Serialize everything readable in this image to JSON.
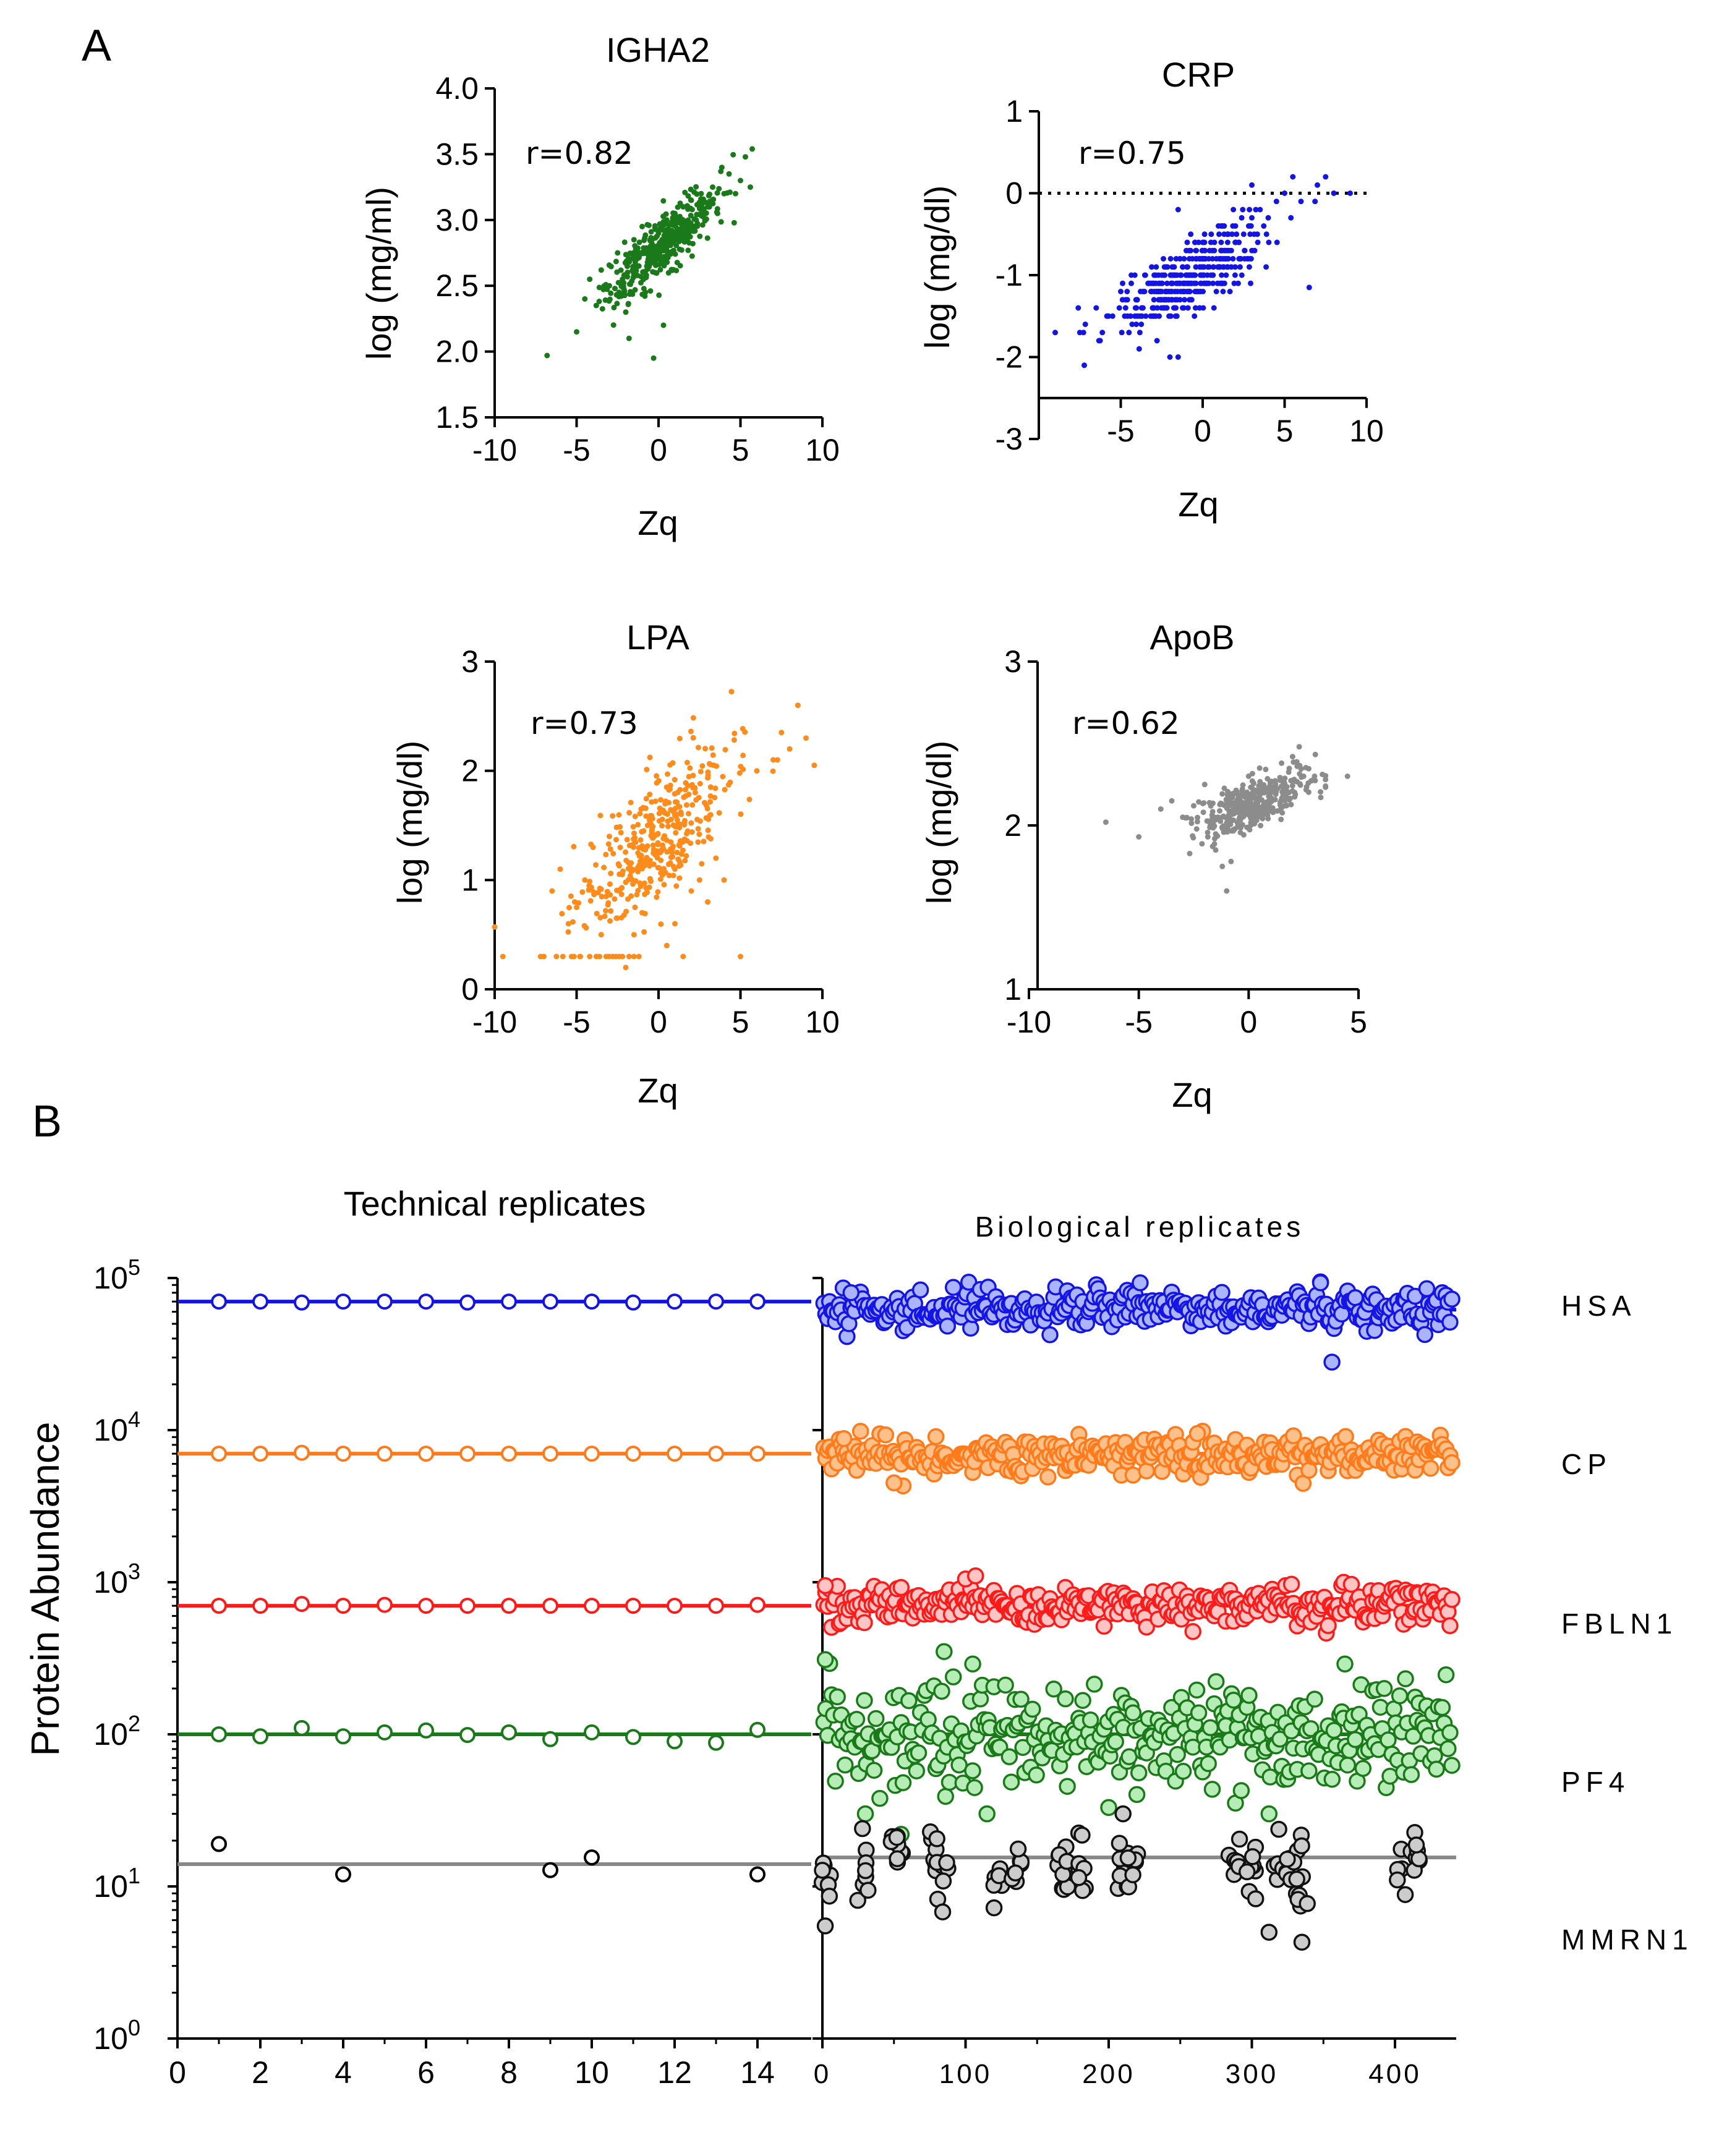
{
  "panels": {
    "a": "A",
    "b": "B"
  },
  "chart_data": [
    {
      "id": "igha2",
      "type": "scatter",
      "title": "IGHA2",
      "xlabel": "Zq",
      "ylabel": "log (mg/ml)",
      "annotation": "r=0.82",
      "xlim": [
        -10,
        10
      ],
      "ylim": [
        1.5,
        4.0
      ],
      "xticks": [
        -10,
        -5,
        0,
        5,
        10
      ],
      "yticks": [
        1.5,
        2.0,
        2.5,
        3.0,
        3.5,
        4.0
      ],
      "ytick_labels": [
        "1.5",
        "2.0",
        "2.5",
        "3.0",
        "3.5",
        "4.0"
      ],
      "color": "#1a7a1a",
      "points": [
        [
          -6.8,
          1.97
        ],
        [
          -5.0,
          2.15
        ],
        [
          -4.5,
          2.4
        ],
        [
          -4.2,
          2.55
        ],
        [
          -3.8,
          2.35
        ],
        [
          -3.5,
          2.62
        ],
        [
          -3.0,
          2.5
        ],
        [
          -2.5,
          2.75
        ],
        [
          -2.2,
          2.55
        ],
        [
          -2.0,
          2.3
        ],
        [
          -1.5,
          2.85
        ],
        [
          -1.2,
          2.65
        ],
        [
          -1.0,
          2.95
        ],
        [
          -0.8,
          2.45
        ],
        [
          -0.5,
          2.8
        ],
        [
          -0.2,
          2.6
        ],
        [
          0.0,
          2.9
        ],
        [
          0.3,
          2.2
        ],
        [
          0.5,
          3.0
        ],
        [
          0.8,
          2.75
        ],
        [
          1.0,
          3.05
        ],
        [
          1.3,
          2.85
        ],
        [
          1.5,
          3.1
        ],
        [
          1.8,
          2.95
        ],
        [
          2.0,
          3.15
        ],
        [
          2.3,
          3.0
        ],
        [
          2.6,
          3.2
        ],
        [
          3.0,
          3.1
        ],
        [
          3.3,
          3.25
        ],
        [
          3.6,
          3.05
        ],
        [
          4.0,
          3.2
        ],
        [
          4.3,
          3.35
        ],
        [
          4.7,
          3.2
        ],
        [
          5.0,
          3.3
        ],
        [
          5.3,
          3.48
        ],
        [
          5.6,
          3.25
        ],
        [
          -0.3,
          1.95
        ],
        [
          -1.8,
          2.1
        ]
      ],
      "cloud": {
        "n": 380,
        "x_mean": 0.2,
        "x_sd": 1.8,
        "slope": 0.105,
        "intercept": 2.78,
        "noise_sd": 0.12,
        "clip": [
          -6.5,
          5.8
        ]
      }
    },
    {
      "id": "crp",
      "type": "scatter",
      "title": "CRP",
      "xlabel": "Zq",
      "ylabel": "log (mg/dl)",
      "annotation": "r=0.75",
      "xlim": [
        -10,
        10
      ],
      "ylim": [
        -3,
        1
      ],
      "xticks": [
        -5,
        0,
        5,
        10
      ],
      "yticks": [
        -3,
        -2,
        -1,
        0,
        1
      ],
      "ytick_labels": [
        "-3",
        "-2",
        "-1",
        "0",
        "1"
      ],
      "reference_line": 0,
      "color": "#1414e6",
      "points": [
        [
          -9.0,
          -1.7
        ],
        [
          -7.5,
          -1.7
        ],
        [
          -6.5,
          -1.4
        ],
        [
          -5.5,
          -1.5
        ],
        [
          -5.0,
          -1.2
        ],
        [
          -4.5,
          -1.7
        ],
        [
          -4.0,
          -1.3
        ],
        [
          -3.5,
          -1.0
        ],
        [
          -3.0,
          -1.4
        ],
        [
          -2.5,
          -1.0
        ],
        [
          -2.0,
          -2.0
        ],
        [
          -1.5,
          -2.0
        ],
        [
          -1.0,
          -0.7
        ],
        [
          -0.5,
          -1.0
        ],
        [
          0.0,
          -0.8
        ],
        [
          0.5,
          -0.6
        ],
        [
          1.0,
          -0.5
        ],
        [
          1.5,
          -0.7
        ],
        [
          2.0,
          -0.4
        ],
        [
          2.5,
          -0.5
        ],
        [
          3.0,
          -0.3
        ],
        [
          3.5,
          -0.2
        ],
        [
          4.0,
          -0.3
        ],
        [
          4.5,
          -0.1
        ],
        [
          5.0,
          0.0
        ],
        [
          5.5,
          0.2
        ],
        [
          6.0,
          -0.1
        ],
        [
          6.5,
          -1.15
        ],
        [
          7.0,
          0.1
        ],
        [
          7.5,
          0.2
        ],
        [
          8.0,
          0.0
        ],
        [
          9.0,
          0.0
        ],
        [
          -1.5,
          -0.2
        ],
        [
          3.0,
          0.1
        ]
      ],
      "cloud": {
        "n": 380,
        "x_mean": -0.8,
        "x_sd": 2.3,
        "slope": 0.11,
        "intercept": -0.95,
        "noise_sd": 0.2,
        "clip": [
          -8.5,
          8.5
        ],
        "quantize": 0.1
      }
    },
    {
      "id": "lpa",
      "type": "scatter",
      "title": "LPA",
      "xlabel": "Zq",
      "ylabel": "log (mg/dl)",
      "annotation": "r=0.73",
      "xlim": [
        -10,
        10
      ],
      "ylim": [
        0,
        3
      ],
      "xticks": [
        -10,
        -5,
        0,
        5,
        10
      ],
      "yticks": [
        0,
        1,
        2,
        3
      ],
      "ytick_labels": [
        "0",
        "1",
        "2",
        "3"
      ],
      "color": "#ff8c1a",
      "points": [
        [
          -10.0,
          0.57
        ],
        [
          -9.5,
          0.3
        ],
        [
          -7.0,
          0.3
        ],
        [
          -6.5,
          0.9
        ],
        [
          -6.0,
          1.1
        ],
        [
          -5.5,
          0.6
        ],
        [
          -5.0,
          0.75
        ],
        [
          -4.5,
          1.0
        ],
        [
          -4.0,
          1.3
        ],
        [
          -3.5,
          0.5
        ],
        [
          -3.0,
          1.4
        ],
        [
          -2.0,
          0.2
        ],
        [
          -1.5,
          0.5
        ],
        [
          -1.0,
          0.7
        ],
        [
          0.5,
          0.4
        ],
        [
          1.0,
          0.6
        ],
        [
          1.5,
          0.3
        ],
        [
          2.0,
          0.9
        ],
        [
          2.5,
          1.0
        ],
        [
          3.0,
          0.8
        ],
        [
          3.5,
          1.2
        ],
        [
          4.0,
          1.0
        ],
        [
          5.0,
          0.3
        ],
        [
          6.0,
          2.0
        ],
        [
          7.0,
          2.1
        ],
        [
          7.5,
          2.35
        ],
        [
          8.0,
          2.2
        ],
        [
          8.5,
          2.6
        ],
        [
          9.0,
          2.3
        ],
        [
          9.5,
          2.05
        ],
        [
          -4.8,
          0.3
        ],
        [
          -4.2,
          0.3
        ],
        [
          -3.8,
          0.3
        ],
        [
          -3.2,
          0.3
        ],
        [
          -2.8,
          0.3
        ],
        [
          -2.4,
          0.3
        ],
        [
          -2.2,
          0.3
        ],
        [
          -1.8,
          0.3
        ],
        [
          -1.5,
          0.3
        ],
        [
          -1.2,
          0.3
        ],
        [
          -3.6,
          0.3
        ],
        [
          -2.6,
          0.3
        ]
      ],
      "cloud": {
        "n": 380,
        "x_mean": 0.0,
        "x_sd": 2.4,
        "slope": 0.13,
        "intercept": 1.35,
        "noise_sd": 0.28,
        "clip": [
          -8.5,
          9.0
        ],
        "floor": 0.3
      }
    },
    {
      "id": "apob",
      "type": "scatter",
      "title": "ApoB",
      "xlabel": "Zq",
      "ylabel": "log (mg/dl)",
      "annotation": "r=0.62",
      "xlim": [
        -10,
        5
      ],
      "ylim": [
        1,
        3
      ],
      "xticks": [
        -10,
        -5,
        0,
        5
      ],
      "yticks": [
        1,
        2,
        3
      ],
      "ytick_labels": [
        "1",
        "2",
        "3"
      ],
      "color": "#8c8c8c",
      "points": [
        [
          -6.5,
          2.02
        ],
        [
          -5.0,
          1.93
        ],
        [
          -4.0,
          2.1
        ],
        [
          -3.5,
          2.15
        ],
        [
          -3.0,
          2.05
        ],
        [
          -2.5,
          2.12
        ],
        [
          -2.0,
          2.25
        ],
        [
          -1.5,
          1.85
        ],
        [
          -1.2,
          1.75
        ],
        [
          -1.0,
          1.6
        ],
        [
          -0.8,
          1.78
        ],
        [
          0.0,
          2.3
        ],
        [
          0.5,
          2.35
        ],
        [
          1.0,
          2.2
        ],
        [
          1.5,
          2.38
        ],
        [
          2.0,
          2.42
        ],
        [
          2.3,
          2.48
        ],
        [
          2.5,
          2.3
        ],
        [
          3.0,
          2.3
        ],
        [
          3.5,
          2.28
        ],
        [
          4.5,
          2.3
        ]
      ],
      "cloud": {
        "n": 380,
        "x_mean": 0.2,
        "x_sd": 1.3,
        "slope": 0.05,
        "intercept": 2.12,
        "noise_sd": 0.07,
        "clip": [
          -4.5,
          3.5
        ]
      }
    },
    {
      "id": "technical",
      "type": "scatter",
      "title": "Technical replicates",
      "ylabel": "Protein Abundance",
      "yscale": "log",
      "ylim": [
        1,
        100000
      ],
      "xlim": [
        0,
        15
      ],
      "xticks": [
        0,
        2,
        4,
        6,
        8,
        10,
        12,
        14
      ],
      "ydecades": [
        0,
        1,
        2,
        3,
        4,
        5
      ],
      "series": [
        {
          "name": "HSA",
          "color": "#1414e6",
          "line": 70000,
          "values": [
            [
              1,
              70000
            ],
            [
              2,
              70000
            ],
            [
              3,
              69000
            ],
            [
              4,
              70000
            ],
            [
              5,
              70000
            ],
            [
              6,
              70000
            ],
            [
              7,
              69000
            ],
            [
              8,
              70000
            ],
            [
              9,
              70000
            ],
            [
              10,
              70000
            ],
            [
              11,
              69000
            ],
            [
              12,
              70000
            ],
            [
              13,
              70000
            ],
            [
              14,
              70000
            ]
          ]
        },
        {
          "name": "CP",
          "color": "#ff7a1a",
          "line": 7000,
          "values": [
            [
              1,
              7000
            ],
            [
              2,
              7000
            ],
            [
              3,
              7100
            ],
            [
              4,
              7000
            ],
            [
              5,
              7000
            ],
            [
              6,
              7000
            ],
            [
              7,
              7000
            ],
            [
              8,
              7000
            ],
            [
              9,
              7000
            ],
            [
              10,
              7000
            ],
            [
              11,
              7000
            ],
            [
              12,
              7000
            ],
            [
              13,
              7000
            ],
            [
              14,
              7000
            ]
          ]
        },
        {
          "name": "FBLN1",
          "color": "#ff1a1a",
          "line": 700,
          "values": [
            [
              1,
              700
            ],
            [
              2,
              700
            ],
            [
              3,
              720
            ],
            [
              4,
              700
            ],
            [
              5,
              710
            ],
            [
              6,
              700
            ],
            [
              7,
              700
            ],
            [
              8,
              700
            ],
            [
              9,
              700
            ],
            [
              10,
              700
            ],
            [
              11,
              700
            ],
            [
              12,
              700
            ],
            [
              13,
              700
            ],
            [
              14,
              710
            ]
          ]
        },
        {
          "name": "PF4",
          "color": "#1a7a1a",
          "line": 100,
          "values": [
            [
              1,
              100
            ],
            [
              2,
              97
            ],
            [
              3,
              110
            ],
            [
              4,
              97
            ],
            [
              5,
              103
            ],
            [
              6,
              106
            ],
            [
              7,
              99
            ],
            [
              8,
              103
            ],
            [
              9,
              93
            ],
            [
              10,
              103
            ],
            [
              11,
              96
            ],
            [
              12,
              90
            ],
            [
              13,
              88
            ],
            [
              14,
              107
            ]
          ]
        },
        {
          "name": "MMRN1",
          "color": "#888888",
          "line": 14,
          "values": [
            [
              1,
              19
            ],
            [
              4,
              12
            ],
            [
              9,
              12.8
            ],
            [
              10,
              15.5
            ],
            [
              14,
              12
            ]
          ]
        }
      ]
    },
    {
      "id": "biological",
      "type": "scatter",
      "title": "Biological replicates",
      "yscale": "log",
      "ylim": [
        1,
        100000
      ],
      "xlim": [
        0,
        440
      ],
      "xticks": [
        0,
        100,
        200,
        300,
        400
      ],
      "series": [
        {
          "name": "HSA",
          "color": "#1414e6",
          "fill": "#aab4ff",
          "line": 62000,
          "log10_center": 4.8,
          "log10_spread": 0.07,
          "outliers": [
            [
              222,
              93000
            ],
            [
              348,
              93000
            ],
            [
              356,
              28000
            ],
            [
              20,
              80000
            ]
          ]
        },
        {
          "name": "CP",
          "color": "#ff7a1a",
          "fill": "#ffc08a",
          "line": 7000,
          "log10_center": 3.84,
          "log10_spread": 0.06,
          "outliers": [
            [
              262,
              9500
            ],
            [
              15,
              8800
            ],
            [
              50,
              4500
            ]
          ]
        },
        {
          "name": "FBLN1",
          "color": "#ff1a1a",
          "fill": "#ffc4c4",
          "line": 700,
          "log10_center": 2.85,
          "log10_spread": 0.06,
          "outliers": [
            [
              100,
              1050
            ],
            [
              107,
              1100
            ],
            [
              2,
              950
            ]
          ]
        },
        {
          "name": "PF4",
          "color": "#1a7a1a",
          "fill": "#b6ecb6",
          "line": 100,
          "log10_center": 1.98,
          "log10_spread": 0.17,
          "outliers": [
            [
              2,
              310
            ],
            [
              85,
              350
            ],
            [
              105,
              290
            ],
            [
              365,
              290
            ],
            [
              30,
              30
            ],
            [
              55,
              22
            ],
            [
              115,
              30
            ],
            [
              200,
              33
            ],
            [
              312,
              30
            ]
          ]
        },
        {
          "name": "MMRN1",
          "color": "#111111",
          "fill": "#cccccc",
          "line": 15.5,
          "clusters": [
            [
              2,
              12
            ],
            [
              28,
              10
            ],
            [
              52,
              18
            ],
            [
              78,
              14
            ],
            [
              84,
              14
            ],
            [
              122,
              12
            ],
            [
              135,
              14
            ],
            [
              168,
              13
            ],
            [
              180,
              14
            ],
            [
              210,
              16
            ],
            [
              217,
              14
            ],
            [
              288,
              14
            ],
            [
              300,
              12
            ],
            [
              318,
              13
            ],
            [
              328,
              15
            ],
            [
              335,
              9
            ],
            [
              405,
              13
            ],
            [
              414,
              16
            ]
          ],
          "outliers": [
            [
              2,
              5.5
            ],
            [
              84,
              6.8
            ],
            [
              312,
              5
            ],
            [
              335,
              4.3
            ],
            [
              28,
              24
            ],
            [
              52,
              21
            ],
            [
              210,
              30
            ]
          ]
        }
      ]
    }
  ]
}
